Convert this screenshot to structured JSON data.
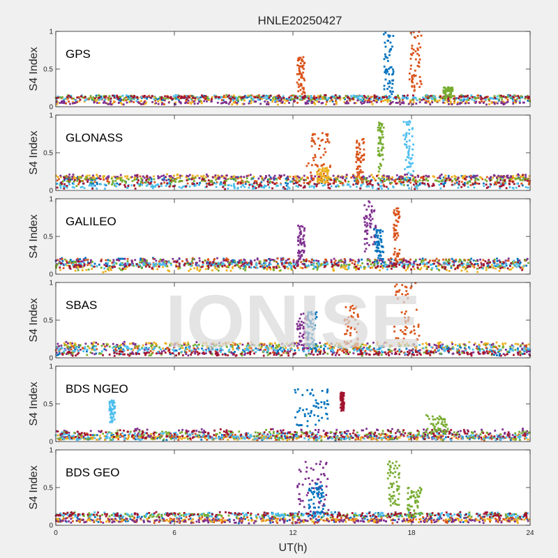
{
  "figure": {
    "title": "HNLE20250427",
    "watermark": "IONISE",
    "xlabel": "UT(h)",
    "ylabel": "S4 Index",
    "colors": [
      "#0072BD",
      "#D95319",
      "#EDB120",
      "#7E2F8E",
      "#77AC30",
      "#4DBEEE",
      "#A2142F"
    ]
  },
  "chart_data": [
    {
      "type": "scatter",
      "title": "GPS",
      "xlabel": "UT(h)",
      "ylabel": "S4 Index",
      "xlim": [
        0,
        24
      ],
      "ylim": [
        0,
        1
      ],
      "xticks": [
        0,
        6,
        12,
        18,
        24
      ],
      "yticks": [
        0,
        0.5,
        1
      ],
      "xtick_labels": [
        "0",
        "6",
        "12",
        "18",
        "24"
      ],
      "ytick_labels": [
        "0",
        "0.5",
        "1"
      ],
      "baseline": {
        "min": 0.04,
        "max": 0.14
      },
      "bursts": [
        {
          "x": [
            12.2,
            12.6
          ],
          "y": [
            0.15,
            0.66
          ],
          "color_index": 1
        },
        {
          "x": [
            16.6,
            17.1
          ],
          "y": [
            0.15,
            1.0
          ],
          "color_index": 0
        },
        {
          "x": [
            17.9,
            18.5
          ],
          "y": [
            0.2,
            1.0
          ],
          "color_index": 1
        },
        {
          "x": [
            19.6,
            20.1
          ],
          "y": [
            0.12,
            0.26
          ],
          "color_index": 4
        }
      ]
    },
    {
      "type": "scatter",
      "title": "GLONASS",
      "xlabel": "UT(h)",
      "ylabel": "S4 Index",
      "xlim": [
        0,
        24
      ],
      "ylim": [
        0,
        1
      ],
      "xticks": [
        0,
        6,
        12,
        18,
        24
      ],
      "yticks": [
        0,
        0.5,
        1
      ],
      "xtick_labels": [
        "0",
        "6",
        "12",
        "18",
        "24"
      ],
      "ytick_labels": [
        "0",
        "0.5",
        "1"
      ],
      "baseline": {
        "min": 0.03,
        "max": 0.2
      },
      "bursts": [
        {
          "x": [
            12.7,
            13.9
          ],
          "y": [
            0.1,
            0.77
          ],
          "color_index": 1
        },
        {
          "x": [
            13.2,
            13.8
          ],
          "y": [
            0.1,
            0.3
          ],
          "color_index": 2
        },
        {
          "x": [
            15.2,
            15.6
          ],
          "y": [
            0.1,
            0.7
          ],
          "color_index": 1
        },
        {
          "x": [
            16.3,
            16.6
          ],
          "y": [
            0.2,
            0.9
          ],
          "color_index": 4
        },
        {
          "x": [
            17.6,
            18.1
          ],
          "y": [
            0.15,
            0.92
          ],
          "color_index": 5
        }
      ]
    },
    {
      "type": "scatter",
      "title": "GALILEO",
      "xlabel": "UT(h)",
      "ylabel": "S4 Index",
      "xlim": [
        0,
        24
      ],
      "ylim": [
        0,
        1
      ],
      "xticks": [
        0,
        6,
        12,
        18,
        24
      ],
      "yticks": [
        0,
        0.5,
        1
      ],
      "xtick_labels": [
        "0",
        "6",
        "12",
        "18",
        "24"
      ],
      "ytick_labels": [
        "0",
        "0.5",
        "1"
      ],
      "baseline": {
        "min": 0.03,
        "max": 0.2
      },
      "bursts": [
        {
          "x": [
            12.2,
            12.6
          ],
          "y": [
            0.1,
            0.65
          ],
          "color_index": 3
        },
        {
          "x": [
            15.6,
            16.2
          ],
          "y": [
            0.3,
            0.98
          ],
          "color_index": 3
        },
        {
          "x": [
            16.1,
            16.6
          ],
          "y": [
            0.15,
            0.6
          ],
          "color_index": 0
        },
        {
          "x": [
            17.1,
            17.4
          ],
          "y": [
            0.15,
            0.88
          ],
          "color_index": 1
        }
      ]
    },
    {
      "type": "scatter",
      "title": "SBAS",
      "xlabel": "UT(h)",
      "ylabel": "S4 Index",
      "xlim": [
        0,
        24
      ],
      "ylim": [
        0,
        1
      ],
      "xticks": [
        0,
        6,
        12,
        18,
        24
      ],
      "yticks": [
        0,
        0.5,
        1
      ],
      "xtick_labels": [
        "0",
        "6",
        "12",
        "18",
        "24"
      ],
      "ytick_labels": [
        "0",
        "0.5",
        "1"
      ],
      "baseline": {
        "min": 0.04,
        "max": 0.2
      },
      "bursts": [
        {
          "x": [
            12.2,
            12.8
          ],
          "y": [
            0.1,
            0.6
          ],
          "color_index": 3
        },
        {
          "x": [
            12.7,
            13.2
          ],
          "y": [
            0.1,
            0.62
          ],
          "color_index": 0
        },
        {
          "x": [
            14.6,
            15.3
          ],
          "y": [
            0.1,
            0.72
          ],
          "color_index": 1
        },
        {
          "x": [
            17.1,
            18.4
          ],
          "y": [
            0.15,
            1.0
          ],
          "color_index": 1
        }
      ]
    },
    {
      "type": "scatter",
      "title": "BDS NGEO",
      "xlabel": "UT(h)",
      "ylabel": "S4 Index",
      "xlim": [
        0,
        24
      ],
      "ylim": [
        0,
        1
      ],
      "xticks": [
        0,
        6,
        12,
        18,
        24
      ],
      "yticks": [
        0,
        0.5,
        1
      ],
      "xtick_labels": [
        "0",
        "6",
        "12",
        "18",
        "24"
      ],
      "ytick_labels": [
        "0",
        "0.5",
        "1"
      ],
      "baseline": {
        "min": 0.03,
        "max": 0.16
      },
      "bursts": [
        {
          "x": [
            2.7,
            3.0
          ],
          "y": [
            0.25,
            0.55
          ],
          "color_index": 5
        },
        {
          "x": [
            12.1,
            13.9
          ],
          "y": [
            0.2,
            0.7
          ],
          "color_index": 0
        },
        {
          "x": [
            14.4,
            14.6
          ],
          "y": [
            0.4,
            0.65
          ],
          "color_index": 6
        },
        {
          "x": [
            18.6,
            19.9
          ],
          "y": [
            0.1,
            0.35
          ],
          "color_index": 4
        }
      ]
    },
    {
      "type": "scatter",
      "title": "BDS GEO",
      "xlabel": "UT(h)",
      "ylabel": "S4 Index",
      "xlim": [
        0,
        24
      ],
      "ylim": [
        0,
        1
      ],
      "xticks": [
        0,
        6,
        12,
        18,
        24
      ],
      "yticks": [
        0,
        0.5,
        1
      ],
      "xtick_labels": [
        "0",
        "6",
        "12",
        "18",
        "24"
      ],
      "ytick_labels": [
        "0",
        "0.5",
        "1"
      ],
      "baseline": {
        "min": 0.04,
        "max": 0.16
      },
      "bursts": [
        {
          "x": [
            12.2,
            13.8
          ],
          "y": [
            0.15,
            0.85
          ],
          "color_index": 3
        },
        {
          "x": [
            12.8,
            13.6
          ],
          "y": [
            0.1,
            0.55
          ],
          "color_index": 0
        },
        {
          "x": [
            16.8,
            17.4
          ],
          "y": [
            0.2,
            0.85
          ],
          "color_index": 4
        },
        {
          "x": [
            17.8,
            18.5
          ],
          "y": [
            0.1,
            0.5
          ],
          "color_index": 4
        }
      ]
    }
  ]
}
